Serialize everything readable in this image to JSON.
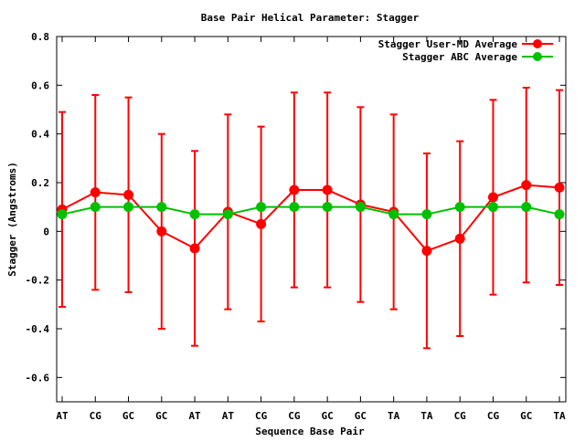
{
  "chart_data": {
    "type": "line",
    "title": "Base Pair Helical Parameter: Stagger",
    "xlabel": "Sequence Base Pair",
    "ylabel": "Stagger (Angstroms)",
    "ylim": [
      -0.7,
      0.8
    ],
    "yticks": [
      -0.6,
      -0.4,
      -0.2,
      0,
      0.2,
      0.4,
      0.6,
      0.8
    ],
    "ytick_labels": [
      "-0.6",
      "-0.4",
      "-0.2",
      "0",
      "0.2",
      "0.4",
      "0.6",
      "0.8"
    ],
    "categories": [
      "AT",
      "CG",
      "GC",
      "GC",
      "AT",
      "AT",
      "CG",
      "CG",
      "GC",
      "GC",
      "TA",
      "TA",
      "CG",
      "CG",
      "GC",
      "TA"
    ],
    "legend_position": "top-right",
    "grid": false,
    "series": [
      {
        "name": "Stagger User-MD Average",
        "color": "#ff0000",
        "values": [
          0.09,
          0.16,
          0.15,
          0.0,
          -0.07,
          0.08,
          0.03,
          0.17,
          0.17,
          0.11,
          0.08,
          -0.08,
          -0.03,
          0.14,
          0.19,
          0.18
        ],
        "error": [
          0.4,
          0.4,
          0.4,
          0.4,
          0.4,
          0.4,
          0.4,
          0.4,
          0.4,
          0.4,
          0.4,
          0.4,
          0.4,
          0.4,
          0.4,
          0.4
        ]
      },
      {
        "name": "Stagger ABC Average",
        "color": "#00c000",
        "values": [
          0.07,
          0.1,
          0.1,
          0.1,
          0.07,
          0.07,
          0.1,
          0.1,
          0.1,
          0.1,
          0.07,
          0.07,
          0.1,
          0.1,
          0.1,
          0.07
        ]
      }
    ]
  }
}
